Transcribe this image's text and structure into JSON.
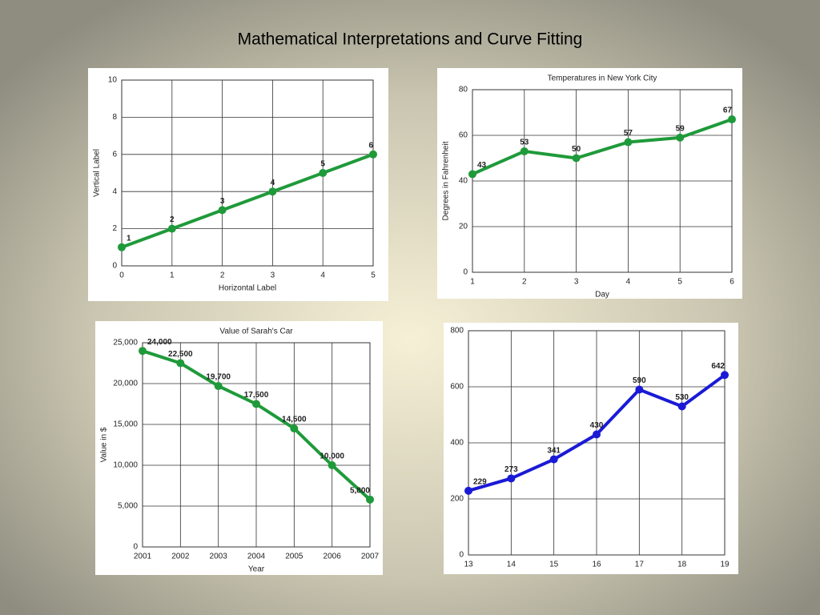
{
  "title": "Mathematical Interpretations and Curve Fitting",
  "chart_data": [
    {
      "type": "line",
      "xlabel": "Horizontal Label",
      "ylabel": "Vertical Label",
      "x": [
        0,
        1,
        2,
        3,
        4,
        5
      ],
      "xlim": [
        0,
        5
      ],
      "xticks": [
        0,
        1,
        2,
        3,
        4,
        5
      ],
      "ylim": [
        0,
        10
      ],
      "yticks": [
        0,
        2,
        4,
        6,
        8,
        10
      ],
      "grid": true,
      "series": [
        {
          "color": "#1f9a3a",
          "values": [
            1,
            2,
            3,
            4,
            5,
            6
          ]
        }
      ]
    },
    {
      "type": "line",
      "title": "Temperatures in New York City",
      "xlabel": "Day",
      "ylabel": "Degrees in Fahrenheit",
      "x": [
        1,
        2,
        3,
        4,
        5,
        6
      ],
      "xlim": [
        1,
        6
      ],
      "xticks": [
        1,
        2,
        3,
        4,
        5,
        6
      ],
      "ylim": [
        0,
        80
      ],
      "yticks": [
        0,
        20,
        40,
        60,
        80
      ],
      "grid": true,
      "series": [
        {
          "color": "#1f9a3a",
          "values": [
            43,
            53,
            50,
            57,
            59,
            67
          ]
        }
      ]
    },
    {
      "type": "line",
      "title": "Value of Sarah's Car",
      "xlabel": "Year",
      "ylabel": "Value in $",
      "x": [
        2001,
        2002,
        2003,
        2004,
        2005,
        2006,
        2007
      ],
      "xlim": [
        2001,
        2007
      ],
      "xticks": [
        2001,
        2002,
        2003,
        2004,
        2005,
        2006,
        2007
      ],
      "ylim": [
        0,
        25000
      ],
      "yticks": [
        0,
        {
          "value": 5000,
          "label": "5,000"
        },
        {
          "value": 10000,
          "label": "10,000"
        },
        {
          "value": 15000,
          "label": "15,000"
        },
        {
          "value": 20000,
          "label": "20,000"
        },
        {
          "value": 25000,
          "label": "25,000"
        }
      ],
      "grid": true,
      "series": [
        {
          "color": "#1f9a3a",
          "values": [
            24000,
            22500,
            19700,
            17500,
            14500,
            10000,
            5800
          ],
          "value_labels": [
            "24,000",
            "22,500",
            "19,700",
            "17,500",
            "14,500",
            "10,000",
            "5,800"
          ]
        }
      ]
    },
    {
      "type": "line",
      "x": [
        13,
        14,
        15,
        16,
        17,
        18,
        19
      ],
      "xlim": [
        13,
        19
      ],
      "xticks": [
        13,
        14,
        15,
        16,
        17,
        18,
        19
      ],
      "ylim": [
        0,
        800
      ],
      "yticks": [
        0,
        200,
        400,
        600,
        800
      ],
      "grid": true,
      "series": [
        {
          "color": "#1a1ad6",
          "values": [
            229,
            273,
            341,
            430,
            590,
            530,
            642
          ]
        }
      ]
    }
  ]
}
